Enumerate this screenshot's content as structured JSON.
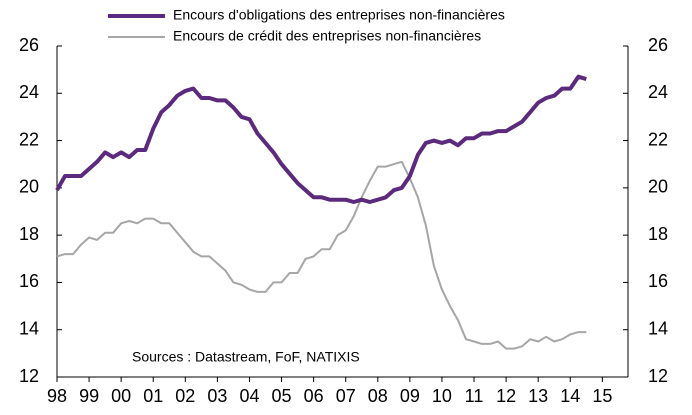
{
  "chart_data": {
    "type": "line",
    "annotation": "Sources : Datastream, FoF, NATIXIS",
    "x": [
      1998,
      1998.25,
      1998.5,
      1998.75,
      1999,
      1999.25,
      1999.5,
      1999.75,
      2000,
      2000.25,
      2000.5,
      2000.75,
      2001,
      2001.25,
      2001.5,
      2001.75,
      2002,
      2002.25,
      2002.5,
      2002.75,
      2003,
      2003.25,
      2003.5,
      2003.75,
      2004,
      2004.25,
      2004.5,
      2004.75,
      2005,
      2005.25,
      2005.5,
      2005.75,
      2006,
      2006.25,
      2006.5,
      2006.75,
      2007,
      2007.25,
      2007.5,
      2007.75,
      2008,
      2008.25,
      2008.5,
      2008.75,
      2009,
      2009.25,
      2009.5,
      2009.75,
      2010,
      2010.25,
      2010.5,
      2010.75,
      2011,
      2011.25,
      2011.5,
      2011.75,
      2012,
      2012.25,
      2012.5,
      2012.75,
      2013,
      2013.25,
      2013.5,
      2013.75,
      2014,
      2014.25,
      2014.5
    ],
    "series": [
      {
        "name": "Encours d'obligations des entreprises non-financières",
        "color": "#5c2a7c",
        "width": 4,
        "values": [
          19.9,
          20.5,
          20.5,
          20.5,
          20.8,
          21.1,
          21.5,
          21.3,
          21.5,
          21.3,
          21.6,
          21.6,
          22.5,
          23.2,
          23.5,
          23.9,
          24.1,
          24.2,
          23.8,
          23.8,
          23.7,
          23.7,
          23.4,
          23.0,
          22.9,
          22.3,
          21.9,
          21.5,
          21.0,
          20.6,
          20.2,
          19.9,
          19.6,
          19.6,
          19.5,
          19.5,
          19.5,
          19.4,
          19.5,
          19.4,
          19.5,
          19.6,
          19.9,
          20.0,
          20.5,
          21.4,
          21.9,
          22.0,
          21.9,
          22.0,
          21.8,
          22.1,
          22.1,
          22.3,
          22.3,
          22.4,
          22.4,
          22.6,
          22.8,
          23.2,
          23.6,
          23.8,
          23.9,
          24.2,
          24.2,
          24.7,
          24.6
        ]
      },
      {
        "name": "Encours de crédit des entreprises non-financières",
        "color": "#a6a6a6",
        "width": 2,
        "axis": "y2",
        "values": [
          17.1,
          17.2,
          17.2,
          17.6,
          17.9,
          17.8,
          18.1,
          18.1,
          18.5,
          18.6,
          18.5,
          18.7,
          18.7,
          18.5,
          18.5,
          18.1,
          17.7,
          17.3,
          17.1,
          17.1,
          16.8,
          16.5,
          16.0,
          15.9,
          15.7,
          15.6,
          15.6,
          16.0,
          16.0,
          16.4,
          16.4,
          17.0,
          17.1,
          17.4,
          17.4,
          18.0,
          18.2,
          18.8,
          19.6,
          20.3,
          20.9,
          20.9,
          21.0,
          21.1,
          20.4,
          19.6,
          18.4,
          16.7,
          15.7,
          15.0,
          14.4,
          13.6,
          13.5,
          13.4,
          13.4,
          13.5,
          13.2,
          13.2,
          13.3,
          13.6,
          13.5,
          13.7,
          13.5,
          13.6,
          13.8,
          13.9,
          13.9
        ]
      }
    ],
    "xlim": [
      1998,
      2015.8
    ],
    "xticks": [
      {
        "value": 1998,
        "label": "98"
      },
      {
        "value": 1999,
        "label": "99"
      },
      {
        "value": 2000,
        "label": "00"
      },
      {
        "value": 2001,
        "label": "01"
      },
      {
        "value": 2002,
        "label": "02"
      },
      {
        "value": 2003,
        "label": "03"
      },
      {
        "value": 2004,
        "label": "04"
      },
      {
        "value": 2005,
        "label": "05"
      },
      {
        "value": 2006,
        "label": "06"
      },
      {
        "value": 2007,
        "label": "07"
      },
      {
        "value": 2008,
        "label": "08"
      },
      {
        "value": 2009,
        "label": "09"
      },
      {
        "value": 2010,
        "label": "10"
      },
      {
        "value": 2011,
        "label": "11"
      },
      {
        "value": 2012,
        "label": "12"
      },
      {
        "value": 2013,
        "label": "13"
      },
      {
        "value": 2014,
        "label": "14"
      },
      {
        "value": 2015,
        "label": "15"
      }
    ],
    "ylim": [
      12,
      26
    ],
    "yticks": [
      12,
      14,
      16,
      18,
      20,
      22,
      24,
      26
    ],
    "y2lim": [
      12,
      26
    ],
    "y2ticks": [
      12,
      14,
      16,
      18,
      20,
      22,
      24,
      26
    ]
  }
}
